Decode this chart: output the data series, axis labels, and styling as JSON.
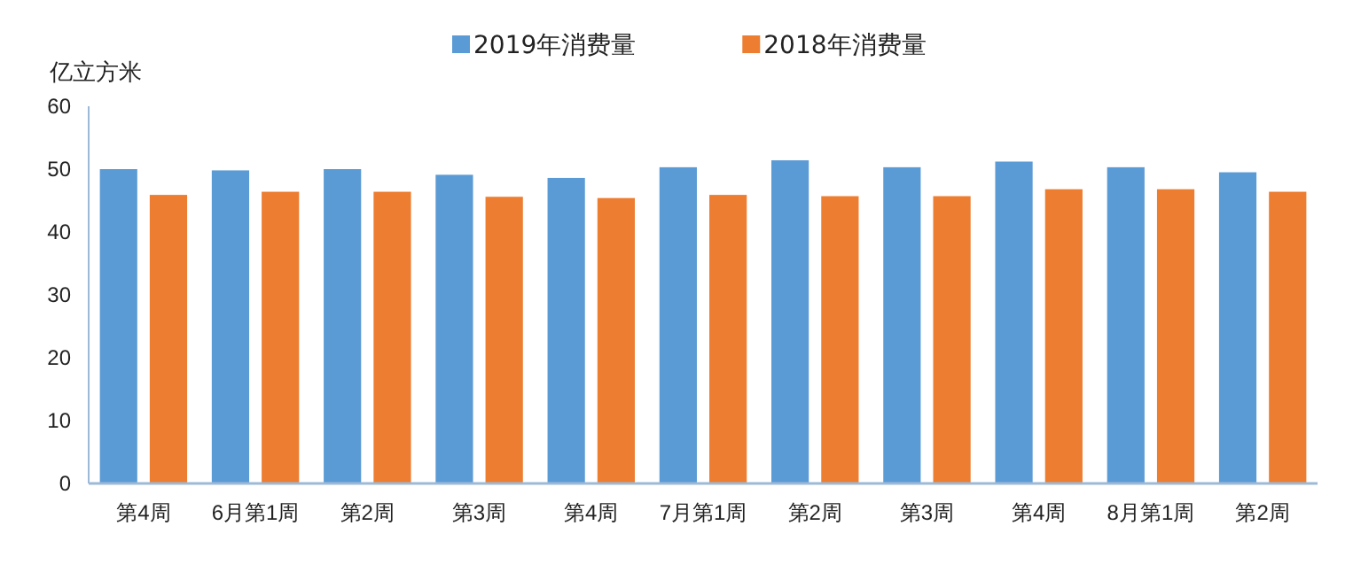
{
  "chart_data": {
    "type": "bar",
    "ylabel": "亿立方米",
    "categories": [
      "第4周",
      "6月第1周",
      "第2周",
      "第3周",
      "第4周",
      "7月第1周",
      "第2周",
      "第3周",
      "第4周",
      "8月第1周",
      "第2周"
    ],
    "series": [
      {
        "name": "2019年消费量",
        "color": "#5b9bd5",
        "values": [
          50.0,
          49.8,
          50.0,
          49.1,
          48.6,
          50.3,
          51.4,
          50.3,
          51.2,
          50.3,
          49.5
        ]
      },
      {
        "name": "2018年消费量",
        "color": "#ed7d31",
        "values": [
          45.9,
          46.4,
          46.4,
          45.6,
          45.4,
          45.9,
          45.7,
          45.7,
          46.8,
          46.8,
          46.4
        ]
      }
    ],
    "ylim": [
      0,
      60
    ],
    "yticks": [
      0,
      10,
      20,
      30,
      40,
      50,
      60
    ],
    "legend": "top",
    "grid": false
  }
}
